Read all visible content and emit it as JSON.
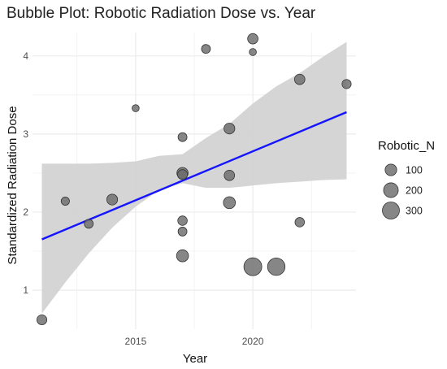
{
  "chart_data": {
    "type": "scatter",
    "title": "Bubble Plot: Robotic Radiation Dose vs. Year",
    "xlabel": "Year",
    "ylabel": "Standardized Radiation Dose",
    "xlim": [
      2010.6,
      2024.4
    ],
    "ylim": [
      0.5,
      4.3
    ],
    "x_ticks": [
      2015,
      2020
    ],
    "y_ticks": [
      1,
      2,
      3,
      4
    ],
    "grid": true,
    "points": [
      {
        "x": 2011,
        "y": 0.62,
        "n": 60
      },
      {
        "x": 2012,
        "y": 2.14,
        "n": 30
      },
      {
        "x": 2013,
        "y": 1.85,
        "n": 40
      },
      {
        "x": 2014,
        "y": 2.16,
        "n": 80
      },
      {
        "x": 2015,
        "y": 3.33,
        "n": 15
      },
      {
        "x": 2017,
        "y": 2.96,
        "n": 40
      },
      {
        "x": 2017,
        "y": 2.5,
        "n": 90
      },
      {
        "x": 2017,
        "y": 2.48,
        "n": 60
      },
      {
        "x": 2017,
        "y": 1.89,
        "n": 50
      },
      {
        "x": 2017,
        "y": 1.75,
        "n": 40
      },
      {
        "x": 2017,
        "y": 1.44,
        "n": 110
      },
      {
        "x": 2018,
        "y": 4.09,
        "n": 40
      },
      {
        "x": 2019,
        "y": 3.07,
        "n": 80
      },
      {
        "x": 2019,
        "y": 2.47,
        "n": 70
      },
      {
        "x": 2019,
        "y": 2.12,
        "n": 110
      },
      {
        "x": 2020,
        "y": 4.22,
        "n": 70
      },
      {
        "x": 2020,
        "y": 4.05,
        "n": 15
      },
      {
        "x": 2020,
        "y": 1.3,
        "n": 340
      },
      {
        "x": 2021,
        "y": 1.3,
        "n": 320
      },
      {
        "x": 2022,
        "y": 3.7,
        "n": 70
      },
      {
        "x": 2022,
        "y": 1.87,
        "n": 50
      },
      {
        "x": 2024,
        "y": 3.64,
        "n": 45
      }
    ],
    "trend": {
      "x": [
        2011,
        2024
      ],
      "y": [
        1.65,
        3.28
      ],
      "color": "#1414ff"
    },
    "ci_band": {
      "x": [
        2011,
        2012,
        2013,
        2014,
        2015,
        2016,
        2017,
        2018,
        2019,
        2020,
        2021,
        2022,
        2023,
        2024
      ],
      "lower": [
        0.7,
        1.1,
        1.47,
        1.8,
        2.07,
        2.28,
        2.37,
        2.31,
        2.31,
        2.34,
        2.37,
        2.39,
        2.41,
        2.42
      ],
      "upper": [
        2.62,
        2.62,
        2.62,
        2.63,
        2.65,
        2.72,
        2.74,
        2.95,
        3.13,
        3.39,
        3.61,
        3.78,
        3.99,
        4.18
      ]
    },
    "legend": {
      "title": "Robotic_N",
      "placement": "right",
      "entries": [
        {
          "label": "100",
          "n": 100
        },
        {
          "label": "200",
          "n": 200
        },
        {
          "label": "300",
          "n": 300
        }
      ]
    },
    "colors": {
      "point_fill": "#6b6b6b",
      "point_stroke": "#333333",
      "band": "#d3d3d3",
      "grid": "#ebebeb"
    }
  }
}
